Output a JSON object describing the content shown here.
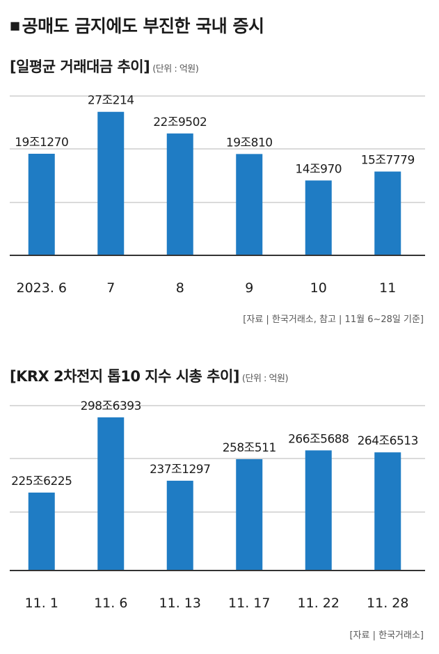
{
  "headline": {
    "bullet": "■",
    "text": "공매도 금지에도 부진한 국내 증시"
  },
  "charts": [
    {
      "title": "[일평균 거래대금 추이]",
      "unit": "(단위 : 억원)",
      "source": "[자료 | 한국거래소, 참고 | 11월 6~28일 기준]"
    },
    {
      "title": "[KRX 2차전지 톱10 지수 시총 추이]",
      "unit": "(단위 : 억원)",
      "source": "[자료 | 한국거래소]"
    }
  ],
  "colors": {
    "bar": "#1f7cc4",
    "grid": "#b5b5b5",
    "axis": "#333333",
    "text": "#1b1b1b"
  },
  "chart_data": [
    {
      "type": "bar",
      "title": "[일평균 거래대금 추이]",
      "categories": [
        "2023. 6",
        "7",
        "8",
        "9",
        "10",
        "11"
      ],
      "values": [
        191270,
        270214,
        229502,
        190810,
        140970,
        157779
      ],
      "data_labels": [
        "19조1270",
        "27조214",
        "22조9502",
        "19조810",
        "14조970",
        "15조7779"
      ],
      "ylim": [
        0,
        300000
      ],
      "grid": true
    },
    {
      "type": "bar",
      "title": "[KRX 2차전지 톱10 지수 시총 추이]",
      "categories": [
        "11. 1",
        "11. 6",
        "11. 13",
        "11. 17",
        "11. 22",
        "11. 28"
      ],
      "values": [
        2256225,
        2986393,
        2371297,
        2580511,
        2665688,
        2646513
      ],
      "data_labels": [
        "225조6225",
        "298조6393",
        "237조1297",
        "258조511",
        "266조5688",
        "264조6513"
      ],
      "ylim": [
        1500000,
        3100000
      ],
      "grid": true
    }
  ]
}
